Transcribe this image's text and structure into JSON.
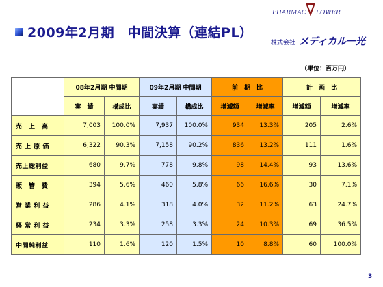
{
  "header": {
    "title": "2009年2月期　中間決算（連結PL）",
    "logo_word1": "PHARMAC",
    "logo_word2": "LOWER",
    "company_prefix": "株式会社",
    "company_name": "メディカル一光"
  },
  "unit": "（単位：百万円）",
  "table": {
    "groups": [
      "08年2月期 中間期",
      "09年2月期 中間期",
      "前　期　比",
      "計　画　比"
    ],
    "subheaders": [
      "実　績",
      "構成比",
      "実績",
      "構成比",
      "増減額",
      "増減率",
      "増減額",
      "増減率"
    ],
    "rows": [
      {
        "label": "売　上　高",
        "values": [
          "7,003",
          "100.0%",
          "7,937",
          "100.0%",
          "934",
          "13.3%",
          "205",
          "2.6%"
        ]
      },
      {
        "label": "売 上 原 価",
        "values": [
          "6,322",
          "90.3%",
          "7,158",
          "90.2%",
          "836",
          "13.2%",
          "111",
          "1.6%"
        ]
      },
      {
        "label": "売上総利益",
        "values": [
          "680",
          "9.7%",
          "778",
          "9.8%",
          "98",
          "14.4%",
          "93",
          "13.6%"
        ]
      },
      {
        "label": "販　管　費",
        "values": [
          "394",
          "5.6%",
          "460",
          "5.8%",
          "66",
          "16.6%",
          "30",
          "7.1%"
        ]
      },
      {
        "label": "営 業 利 益",
        "values": [
          "286",
          "4.1%",
          "318",
          "4.0%",
          "32",
          "11.2%",
          "63",
          "24.7%"
        ]
      },
      {
        "label": "経 常 利 益",
        "values": [
          "234",
          "3.3%",
          "258",
          "3.3%",
          "24",
          "10.3%",
          "69",
          "36.5%"
        ]
      },
      {
        "label": "中間純利益",
        "values": [
          "110",
          "1.6%",
          "120",
          "1.5%",
          "10",
          "8.8%",
          "60",
          "100.0%"
        ]
      }
    ]
  },
  "page_number": "3",
  "colors": {
    "title": "#1b1b8f",
    "label_bg": "#ffffb0",
    "prev_period_bg": "#ffffb8",
    "current_period_bg": "#d8e8ff",
    "yoy_bg": "#ff9900",
    "plan_bg": "#ffffb8"
  }
}
